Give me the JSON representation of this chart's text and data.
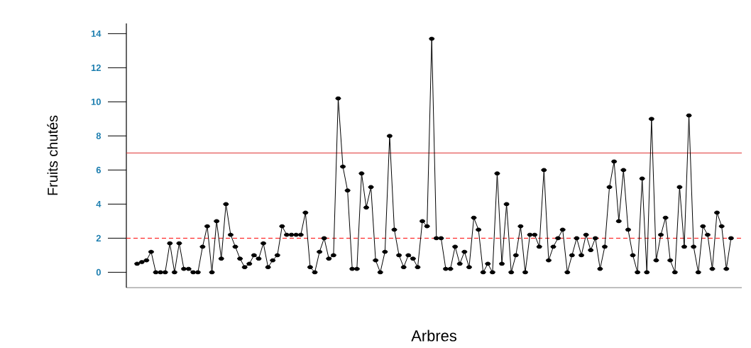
{
  "chart_data": {
    "type": "line",
    "xlabel": "Arbres",
    "ylabel": "Fruits chutés",
    "categories": [
      null,
      null,
      null,
      null,
      null,
      null,
      null,
      null,
      null,
      null,
      null,
      null,
      null,
      null,
      null,
      null,
      null,
      null,
      null,
      null,
      null,
      null,
      null,
      null,
      null,
      null,
      null,
      null,
      null,
      null,
      null,
      null,
      null,
      null,
      null,
      null,
      null,
      null,
      null,
      null,
      null,
      null,
      null,
      null,
      null,
      null,
      null,
      null,
      null,
      null,
      null,
      null,
      null,
      null,
      null,
      null,
      null,
      null,
      null,
      null,
      null,
      null,
      null,
      null,
      null,
      null,
      null,
      null,
      null,
      null,
      null,
      null,
      null,
      null,
      null,
      null,
      null,
      null,
      null,
      null,
      null,
      null,
      null,
      null,
      null,
      null,
      null,
      null,
      null,
      null,
      null,
      null,
      null,
      null,
      null,
      null,
      null,
      null,
      null,
      null,
      null,
      null,
      null,
      null,
      null,
      null,
      null,
      null,
      null,
      null,
      null,
      null,
      null,
      null,
      null,
      null,
      null,
      null,
      null,
      null,
      null,
      null,
      null,
      null,
      null,
      null,
      null,
      null
    ],
    "series": [
      {
        "color": "#000000",
        "values": [
          0.5,
          0.6,
          0.7,
          1.2,
          0,
          0,
          0,
          1.7,
          0,
          1.7,
          0.2,
          0.2,
          0,
          0,
          1.5,
          2.7,
          0,
          3.0,
          0.8,
          4.0,
          2.2,
          1.5,
          0.8,
          0.3,
          0.5,
          1.0,
          0.8,
          1.7,
          0.3,
          0.7,
          1.0,
          2.7,
          2.2,
          2.2,
          2.2,
          2.2,
          3.5,
          0.3,
          0,
          1.2,
          2.0,
          0.8,
          1.0,
          10.2,
          6.2,
          4.8,
          0.2,
          0.2,
          5.8,
          3.8,
          5.0,
          0.7,
          0,
          1.2,
          8.0,
          2.5,
          1.0,
          0.3,
          1.0,
          0.8,
          0.3,
          3.0,
          2.7,
          13.7,
          2.0,
          2.0,
          0.2,
          0.2,
          1.5,
          0.5,
          1.2,
          0.3,
          3.2,
          2.5,
          0,
          0.5,
          0,
          5.8,
          0.5,
          4.0,
          0,
          1.0,
          2.7,
          0,
          2.2,
          2.2,
          1.5,
          6.0,
          0.7,
          1.5,
          2.0,
          2.5,
          0,
          1.0,
          2.0,
          1.0,
          2.2,
          1.3,
          2.0,
          0.2,
          1.5,
          5.0,
          6.5,
          3.0,
          6.0,
          2.5,
          1.0,
          0,
          5.5,
          0,
          9.0,
          0.7,
          2.2,
          3.2,
          0.7,
          0,
          5.0,
          1.5,
          9.2,
          1.5,
          0,
          2.7,
          2.2,
          0.2,
          3.5,
          2.7,
          0.2,
          2.0
        ]
      }
    ],
    "ylim": [
      -0.9,
      14.6
    ],
    "yticks": [
      0,
      2,
      4,
      6,
      8,
      10,
      12,
      14
    ],
    "tick_labels": "y",
    "marker": "circle",
    "line_style": "solid",
    "grid": false,
    "ref_lines": [
      {
        "axis": "y",
        "value": 7,
        "color": "#e03030",
        "line_style": "solid"
      },
      {
        "axis": "y",
        "value": 2,
        "color": "#ff0000",
        "line_style": "dashed"
      }
    ]
  }
}
